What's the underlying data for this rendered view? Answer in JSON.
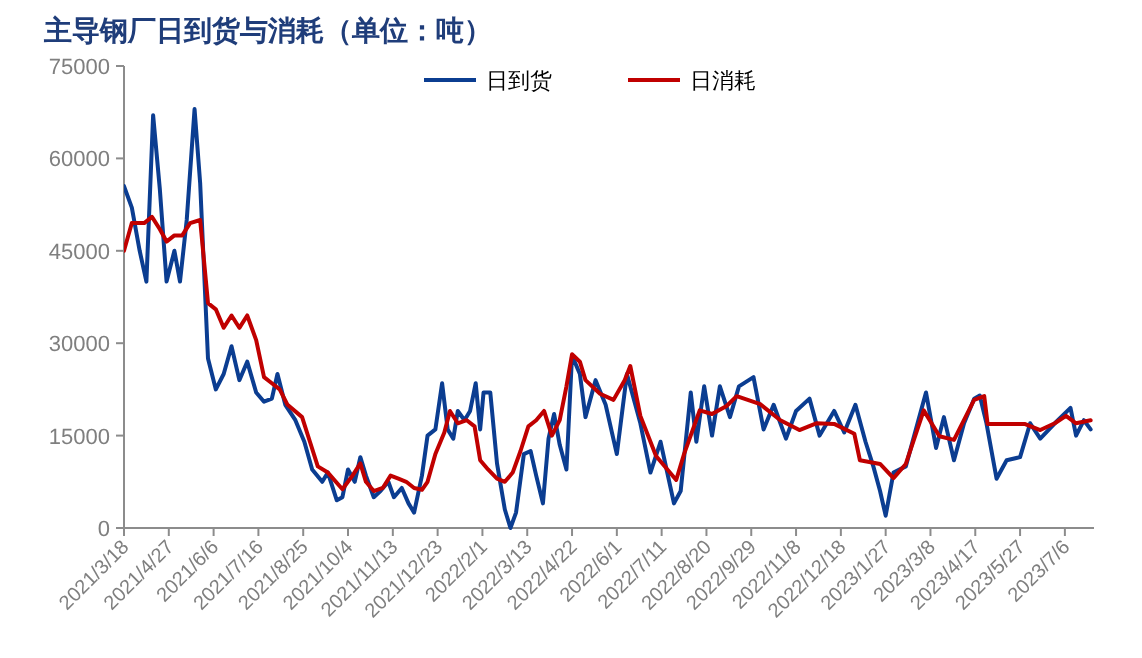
{
  "chart_data": {
    "type": "line",
    "title": "主导钢厂日到货与消耗（单位：吨）",
    "legend": "top",
    "xlim": [
      "2021-03-18",
      "2023-08-01"
    ],
    "xticks": [
      {
        "value": "2021-03-18",
        "label": "2021/3/18"
      },
      {
        "value": "2021-04-27",
        "label": "2021/4/27"
      },
      {
        "value": "2021-06-06",
        "label": "2021/6/6"
      },
      {
        "value": "2021-07-16",
        "label": "2021/7/16"
      },
      {
        "value": "2021-08-25",
        "label": "2021/8/25"
      },
      {
        "value": "2021-10-04",
        "label": "2021/10/4"
      },
      {
        "value": "2021-11-13",
        "label": "2021/11/13"
      },
      {
        "value": "2021-12-23",
        "label": "2021/12/23"
      },
      {
        "value": "2022-02-01",
        "label": "2022/2/1"
      },
      {
        "value": "2022-03-13",
        "label": "2022/3/13"
      },
      {
        "value": "2022-04-22",
        "label": "2022/4/22"
      },
      {
        "value": "2022-06-01",
        "label": "2022/6/1"
      },
      {
        "value": "2022-07-11",
        "label": "2022/7/11"
      },
      {
        "value": "2022-08-20",
        "label": "2022/8/20"
      },
      {
        "value": "2022-09-29",
        "label": "2022/9/29"
      },
      {
        "value": "2022-11-08",
        "label": "2022/11/8"
      },
      {
        "value": "2022-12-18",
        "label": "2022/12/18"
      },
      {
        "value": "2023-01-27",
        "label": "2023/1/27"
      },
      {
        "value": "2023-03-08",
        "label": "2023/3/8"
      },
      {
        "value": "2023-04-17",
        "label": "2023/4/17"
      },
      {
        "value": "2023-05-27",
        "label": "2023/5/27"
      },
      {
        "value": "2023-07-06",
        "label": "2023/7/6"
      }
    ],
    "ylim": [
      0,
      75000
    ],
    "yticks": [
      0,
      15000,
      30000,
      45000,
      60000,
      75000
    ],
    "series": [
      {
        "name": "日到货",
        "color": "#0b3d91",
        "x": [
          "2021-03-18",
          "2021-03-25",
          "2021-04-01",
          "2021-04-07",
          "2021-04-13",
          "2021-04-19",
          "2021-04-25",
          "2021-05-02",
          "2021-05-07",
          "2021-05-13",
          "2021-05-20",
          "2021-05-25",
          "2021-06-01",
          "2021-06-08",
          "2021-06-15",
          "2021-06-22",
          "2021-06-29",
          "2021-07-06",
          "2021-07-14",
          "2021-07-21",
          "2021-07-28",
          "2021-08-02",
          "2021-08-09",
          "2021-08-18",
          "2021-08-26",
          "2021-09-02",
          "2021-09-11",
          "2021-09-16",
          "2021-09-24",
          "2021-09-29",
          "2021-10-04",
          "2021-10-10",
          "2021-10-15",
          "2021-10-20",
          "2021-10-27",
          "2021-11-02",
          "2021-11-09",
          "2021-11-14",
          "2021-11-21",
          "2021-11-27",
          "2021-12-02",
          "2021-12-09",
          "2021-12-14",
          "2021-12-21",
          "2021-12-27",
          "2022-01-01",
          "2022-01-06",
          "2022-01-10",
          "2022-01-16",
          "2022-01-21",
          "2022-01-26",
          "2022-01-30",
          "2022-02-02",
          "2022-02-08",
          "2022-02-14",
          "2022-02-21",
          "2022-02-26",
          "2022-03-03",
          "2022-03-10",
          "2022-03-16",
          "2022-03-21",
          "2022-03-27",
          "2022-04-01",
          "2022-04-06",
          "2022-04-11",
          "2022-04-17",
          "2022-04-22",
          "2022-04-29",
          "2022-05-04",
          "2022-05-13",
          "2022-05-22",
          "2022-06-01",
          "2022-06-10",
          "2022-06-22",
          "2022-07-01",
          "2022-07-10",
          "2022-07-22",
          "2022-07-28",
          "2022-08-06",
          "2022-08-11",
          "2022-08-18",
          "2022-08-25",
          "2022-09-01",
          "2022-09-10",
          "2022-09-18",
          "2022-10-01",
          "2022-10-10",
          "2022-10-19",
          "2022-10-30",
          "2022-11-08",
          "2022-11-20",
          "2022-11-29",
          "2022-12-12",
          "2022-12-21",
          "2022-12-31",
          "2023-01-09",
          "2023-01-16",
          "2023-01-22",
          "2023-01-27",
          "2023-02-03",
          "2023-02-14",
          "2023-02-26",
          "2023-03-04",
          "2023-03-13",
          "2023-03-20",
          "2023-03-29",
          "2023-04-07",
          "2023-04-16",
          "2023-04-21",
          "2023-04-27",
          "2023-05-06",
          "2023-05-15",
          "2023-05-27",
          "2023-06-05",
          "2023-06-14",
          "2023-06-27",
          "2023-07-11",
          "2023-07-16",
          "2023-07-23",
          "2023-07-29"
        ],
        "values": [
          55500,
          52000,
          45000,
          40000,
          67000,
          55000,
          40000,
          45000,
          40000,
          50000,
          68000,
          56000,
          27500,
          22500,
          25000,
          29500,
          24000,
          27000,
          22000,
          20500,
          21000,
          25000,
          20000,
          17500,
          14000,
          9500,
          7500,
          9000,
          4500,
          5000,
          9500,
          7500,
          11500,
          8500,
          5000,
          6000,
          7500,
          5000,
          6500,
          4000,
          2500,
          8500,
          15000,
          16000,
          23500,
          16000,
          14500,
          19000,
          17500,
          19000,
          23500,
          16000,
          22000,
          22000,
          10500,
          3000,
          0,
          2500,
          12000,
          12500,
          8500,
          4000,
          14500,
          18500,
          13500,
          9500,
          28000,
          25000,
          18000,
          24000,
          20000,
          12000,
          25000,
          17000,
          9000,
          14000,
          4000,
          6000,
          22000,
          14000,
          23000,
          15000,
          23000,
          18000,
          23000,
          24500,
          16000,
          20000,
          14500,
          19000,
          21000,
          15000,
          19000,
          15500,
          20000,
          14000,
          10000,
          6000,
          2000,
          9000,
          10000,
          18000,
          22000,
          13000,
          18000,
          11000,
          17000,
          21000,
          21500,
          17000,
          8000,
          11000,
          11500,
          17000,
          14500,
          17000,
          19500,
          15000,
          17500,
          16000
        ]
      },
      {
        "name": "日消耗",
        "color": "#c00000",
        "x": [
          "2021-03-18",
          "2021-03-25",
          "2021-04-05",
          "2021-04-12",
          "2021-04-19",
          "2021-04-25",
          "2021-05-02",
          "2021-05-09",
          "2021-05-16",
          "2021-05-25",
          "2021-06-01",
          "2021-06-08",
          "2021-06-15",
          "2021-06-22",
          "2021-06-29",
          "2021-07-06",
          "2021-07-14",
          "2021-07-21",
          "2021-07-28",
          "2021-08-04",
          "2021-08-11",
          "2021-08-24",
          "2021-08-31",
          "2021-09-07",
          "2021-09-16",
          "2021-09-29",
          "2021-10-08",
          "2021-10-15",
          "2021-10-20",
          "2021-10-27",
          "2021-11-04",
          "2021-11-11",
          "2021-11-18",
          "2021-11-25",
          "2021-12-02",
          "2021-12-09",
          "2021-12-14",
          "2021-12-21",
          "2021-12-29",
          "2022-01-03",
          "2022-01-10",
          "2022-01-18",
          "2022-01-25",
          "2022-01-30",
          "2022-02-06",
          "2022-02-14",
          "2022-02-21",
          "2022-02-28",
          "2022-03-07",
          "2022-03-14",
          "2022-03-21",
          "2022-03-28",
          "2022-04-04",
          "2022-04-11",
          "2022-04-17",
          "2022-04-22",
          "2022-04-29",
          "2022-05-04",
          "2022-05-17",
          "2022-05-29",
          "2022-06-08",
          "2022-06-13",
          "2022-06-22",
          "2022-07-06",
          "2022-07-24",
          "2022-07-31",
          "2022-08-14",
          "2022-08-25",
          "2022-09-07",
          "2022-09-16",
          "2022-10-07",
          "2022-10-25",
          "2022-11-11",
          "2022-11-26",
          "2022-12-12",
          "2022-12-30",
          "2023-01-04",
          "2023-01-22",
          "2023-02-03",
          "2023-02-14",
          "2023-03-02",
          "2023-03-16",
          "2023-03-29",
          "2023-04-16",
          "2023-04-25",
          "2023-04-28",
          "2023-05-31",
          "2023-06-14",
          "2023-06-27",
          "2023-07-07",
          "2023-07-16",
          "2023-07-29"
        ],
        "values": [
          45000,
          49500,
          49500,
          50500,
          48500,
          46500,
          47500,
          47500,
          49500,
          50000,
          36500,
          35500,
          32500,
          34500,
          32500,
          34500,
          30500,
          24500,
          23500,
          22500,
          20000,
          18000,
          14000,
          10000,
          9000,
          6300,
          8500,
          10500,
          7500,
          6000,
          6500,
          8500,
          8000,
          7500,
          6500,
          6200,
          7500,
          12000,
          15500,
          19000,
          17000,
          17500,
          16500,
          11000,
          9500,
          8000,
          7500,
          9000,
          12500,
          16500,
          17500,
          19000,
          15000,
          17500,
          23000,
          28200,
          27000,
          24000,
          21800,
          20800,
          24000,
          26300,
          18200,
          11700,
          7800,
          12000,
          19100,
          18500,
          19800,
          21400,
          20100,
          17500,
          15900,
          17000,
          16900,
          15300,
          11000,
          10400,
          8100,
          10400,
          19100,
          14900,
          14300,
          20800,
          21400,
          16900,
          16900,
          15900,
          17000,
          18200,
          17000,
          17500
        ]
      }
    ]
  }
}
